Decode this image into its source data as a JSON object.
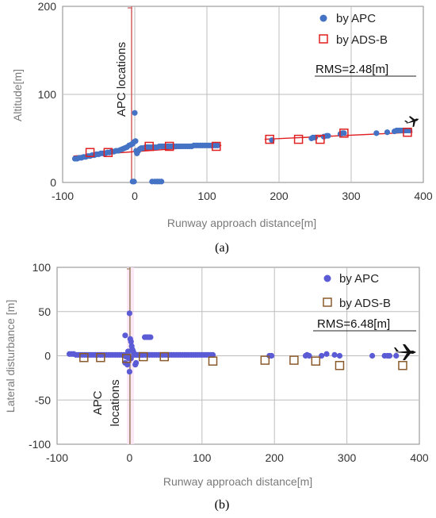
{
  "chart_data": [
    {
      "type": "scatter",
      "panel": "(a)",
      "caption": "(a)",
      "xlabel": "Runway approach distance[m]",
      "ylabel": "Altitude[m]",
      "xlim": [
        -100,
        400
      ],
      "ylim": [
        0,
        200
      ],
      "xticks": [
        "-100",
        "0",
        "100",
        "200",
        "300",
        "400"
      ],
      "yticks": [
        "0",
        "100",
        "200"
      ],
      "grid": true,
      "legend_position": "top-right",
      "annotation_rms": "RMS=2.48[m]",
      "annotation_apc": "APC locations",
      "series": [
        {
          "name": "by APC",
          "marker": "filled-circle",
          "color": "#4472c4",
          "points": [
            [
              -83,
              27
            ],
            [
              -80,
              27
            ],
            [
              -77,
              28
            ],
            [
              -74,
              28
            ],
            [
              -71,
              29
            ],
            [
              -68,
              29
            ],
            [
              -65,
              30
            ],
            [
              -62,
              30
            ],
            [
              -59,
              31
            ],
            [
              -56,
              31
            ],
            [
              -53,
              32
            ],
            [
              -50,
              32
            ],
            [
              -47,
              33
            ],
            [
              -44,
              33
            ],
            [
              -41,
              33
            ],
            [
              -38,
              34
            ],
            [
              -35,
              34
            ],
            [
              -32,
              35
            ],
            [
              -29,
              35
            ],
            [
              -26,
              36
            ],
            [
              -23,
              36
            ],
            [
              -20,
              37
            ],
            [
              -17,
              38
            ],
            [
              -14,
              39
            ],
            [
              -11,
              40
            ],
            [
              -8,
              42
            ],
            [
              -5,
              43
            ],
            [
              -3,
              44
            ],
            [
              -1,
              46
            ],
            [
              0,
              79
            ],
            [
              1,
              47
            ],
            [
              2,
              36
            ],
            [
              3,
              33
            ],
            [
              5,
              36
            ],
            [
              7,
              38
            ],
            [
              9,
              39
            ],
            [
              11,
              39
            ],
            [
              13,
              39
            ],
            [
              15,
              40
            ],
            [
              17,
              40
            ],
            [
              19,
              40
            ],
            [
              22,
              40
            ],
            [
              25,
              40
            ],
            [
              28,
              40
            ],
            [
              31,
              40
            ],
            [
              34,
              41
            ],
            [
              37,
              41
            ],
            [
              40,
              41
            ],
            [
              43,
              41
            ],
            [
              46,
              41
            ],
            [
              49,
              41
            ],
            [
              52,
              41
            ],
            [
              55,
              41
            ],
            [
              58,
              41
            ],
            [
              61,
              41
            ],
            [
              64,
              41
            ],
            [
              67,
              41
            ],
            [
              70,
              41
            ],
            [
              73,
              41
            ],
            [
              76,
              41
            ],
            [
              79,
              41
            ],
            [
              82,
              42
            ],
            [
              85,
              42
            ],
            [
              88,
              42
            ],
            [
              91,
              42
            ],
            [
              94,
              42
            ],
            [
              97,
              42
            ],
            [
              100,
              42
            ],
            [
              103,
              42
            ],
            [
              106,
              42
            ],
            [
              109,
              42
            ],
            [
              112,
              42
            ],
            [
              115,
              42
            ],
            [
              -3,
              1
            ],
            [
              -1,
              1
            ],
            [
              24,
              1
            ],
            [
              28,
              1
            ],
            [
              31,
              1
            ],
            [
              34,
              1
            ],
            [
              37,
              1
            ],
            [
              190,
              48
            ],
            [
              245,
              50
            ],
            [
              247,
              51
            ],
            [
              250,
              51
            ],
            [
              262,
              52
            ],
            [
              266,
              53
            ],
            [
              268,
              53
            ],
            [
              285,
              55
            ],
            [
              288,
              56
            ],
            [
              290,
              56
            ],
            [
              335,
              56
            ],
            [
              350,
              57
            ],
            [
              360,
              58
            ],
            [
              363,
              59
            ],
            [
              366,
              59
            ],
            [
              369,
              59
            ],
            [
              372,
              59
            ],
            [
              375,
              59
            ],
            [
              378,
              59
            ],
            [
              381,
              59
            ]
          ]
        },
        {
          "name": "by ADS-B",
          "marker": "hollow-square",
          "color": "#e02020",
          "points": [
            [
              -62,
              34
            ],
            [
              -37,
              34
            ],
            [
              20,
              41
            ],
            [
              48,
              41
            ],
            [
              113,
              41
            ],
            [
              187,
              49
            ],
            [
              227,
              49
            ],
            [
              257,
              49
            ],
            [
              290,
              56
            ],
            [
              378,
              57
            ]
          ]
        }
      ],
      "reference_lines": [
        {
          "from": [
            -85,
            30
          ],
          "to": [
            120,
            42
          ]
        },
        {
          "from": [
            180,
            49
          ],
          "to": [
            385,
            57
          ]
        }
      ]
    },
    {
      "type": "scatter",
      "panel": "(b)",
      "caption": "(b)",
      "xlabel": "Runway approach distance[m]",
      "ylabel": "Lateral disturbance [m]",
      "xlim": [
        -100,
        400
      ],
      "ylim": [
        -100,
        100
      ],
      "xticks": [
        "-100",
        "0",
        "100",
        "200",
        "300",
        "400"
      ],
      "yticks": [
        "-100",
        "-50",
        "0",
        "50",
        "100"
      ],
      "grid": true,
      "legend_position": "top-right",
      "annotation_rms": "RMS=6.48[m]",
      "annotation_apc": "APC locations",
      "series": [
        {
          "name": "by APC",
          "marker": "filled-circle",
          "color": "#4472c4",
          "points": [
            [
              -83,
              2
            ],
            [
              -80,
              2
            ],
            [
              -77,
              2
            ],
            [
              -74,
              1
            ],
            [
              -71,
              1
            ],
            [
              -68,
              1
            ],
            [
              -65,
              1
            ],
            [
              -62,
              1
            ],
            [
              -59,
              1
            ],
            [
              -56,
              1
            ],
            [
              -53,
              1
            ],
            [
              -50,
              1
            ],
            [
              -47,
              1
            ],
            [
              -44,
              1
            ],
            [
              -41,
              1
            ],
            [
              -38,
              1
            ],
            [
              -35,
              1
            ],
            [
              -32,
              1
            ],
            [
              -29,
              1
            ],
            [
              -26,
              1
            ],
            [
              -23,
              1
            ],
            [
              -20,
              1
            ],
            [
              -17,
              1
            ],
            [
              -14,
              1
            ],
            [
              -11,
              1
            ],
            [
              -8,
              1
            ],
            [
              -5,
              1
            ],
            [
              -3,
              0
            ],
            [
              -1,
              0
            ],
            [
              -6,
              23
            ],
            [
              -2,
              5
            ],
            [
              0,
              48
            ],
            [
              1,
              19
            ],
            [
              2,
              16
            ],
            [
              3,
              11
            ],
            [
              4,
              7
            ],
            [
              5,
              5
            ],
            [
              6,
              3
            ],
            [
              -5,
              -1
            ],
            [
              -1,
              -3
            ],
            [
              2,
              -3
            ],
            [
              0,
              -18
            ],
            [
              -6,
              -8
            ],
            [
              -3,
              -10
            ],
            [
              9,
              -8
            ],
            [
              8,
              -10
            ],
            [
              7,
              1
            ],
            [
              9,
              1
            ],
            [
              11,
              1
            ],
            [
              13,
              1
            ],
            [
              15,
              1
            ],
            [
              17,
              1
            ],
            [
              19,
              1
            ],
            [
              21,
              21
            ],
            [
              23,
              21
            ],
            [
              25,
              21
            ],
            [
              27,
              21
            ],
            [
              29,
              21
            ],
            [
              22,
              1
            ],
            [
              25,
              1
            ],
            [
              28,
              1
            ],
            [
              31,
              1
            ],
            [
              34,
              1
            ],
            [
              37,
              1
            ],
            [
              40,
              1
            ],
            [
              43,
              1
            ],
            [
              46,
              1
            ],
            [
              49,
              1
            ],
            [
              52,
              1
            ],
            [
              55,
              1
            ],
            [
              58,
              1
            ],
            [
              61,
              1
            ],
            [
              64,
              1
            ],
            [
              67,
              1
            ],
            [
              70,
              1
            ],
            [
              73,
              1
            ],
            [
              76,
              1
            ],
            [
              79,
              1
            ],
            [
              82,
              1
            ],
            [
              85,
              1
            ],
            [
              88,
              1
            ],
            [
              91,
              1
            ],
            [
              94,
              1
            ],
            [
              97,
              1
            ],
            [
              100,
              1
            ],
            [
              103,
              1
            ],
            [
              106,
              1
            ],
            [
              109,
              1
            ],
            [
              112,
              1
            ],
            [
              115,
              1
            ],
            [
              193,
              0
            ],
            [
              196,
              0
            ],
            [
              243,
              0
            ],
            [
              245,
              1
            ],
            [
              248,
              0
            ],
            [
              265,
              0
            ],
            [
              272,
              2
            ],
            [
              283,
              1
            ],
            [
              290,
              0
            ],
            [
              335,
              0
            ],
            [
              352,
              0
            ],
            [
              356,
              0
            ],
            [
              359,
              0
            ],
            [
              368,
              0
            ]
          ]
        },
        {
          "name": "by ADS-B",
          "marker": "hollow-square",
          "color": "#8b5a2b",
          "points": [
            [
              -63,
              -2
            ],
            [
              -40,
              -2
            ],
            [
              -4,
              -3
            ],
            [
              19,
              -1
            ],
            [
              48,
              -1
            ],
            [
              115,
              -6
            ],
            [
              187,
              -5
            ],
            [
              227,
              -5
            ],
            [
              257,
              -6
            ],
            [
              290,
              -11
            ],
            [
              377,
              -11
            ]
          ]
        }
      ]
    }
  ]
}
